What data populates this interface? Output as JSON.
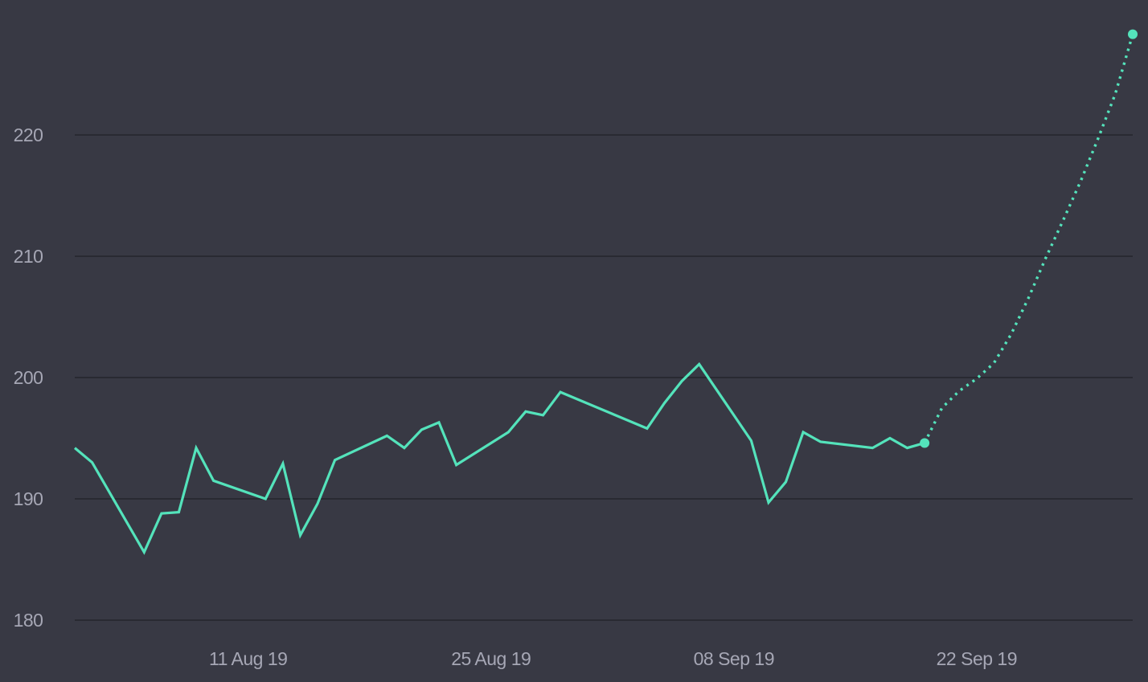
{
  "chart_data": {
    "type": "line",
    "title": "",
    "xlabel": "",
    "ylabel": "",
    "ylim": [
      180,
      228
    ],
    "xlim": [
      "2019-08-01",
      "2019-10-01"
    ],
    "y_ticks": [
      "180",
      "190",
      "200",
      "210",
      "220"
    ],
    "x_ticks": [
      {
        "date": "2019-08-11",
        "label": "11 Aug 19"
      },
      {
        "date": "2019-08-25",
        "label": "25 Aug 19"
      },
      {
        "date": "2019-09-08",
        "label": "08 Sep 19"
      },
      {
        "date": "2019-09-22",
        "label": "22 Sep 19"
      }
    ],
    "grid": "horizontal",
    "line_color": "#54e3bb",
    "series": [
      {
        "style": "solid",
        "points": [
          [
            "2019-08-01",
            194.2
          ],
          [
            "2019-08-02",
            193.0
          ],
          [
            "2019-08-05",
            185.6
          ],
          [
            "2019-08-06",
            188.8
          ],
          [
            "2019-08-07",
            188.9
          ],
          [
            "2019-08-08",
            194.2
          ],
          [
            "2019-08-09",
            191.5
          ],
          [
            "2019-08-12",
            190.0
          ],
          [
            "2019-08-13",
            192.9
          ],
          [
            "2019-08-14",
            187.0
          ],
          [
            "2019-08-15",
            189.6
          ],
          [
            "2019-08-16",
            193.2
          ],
          [
            "2019-08-19",
            195.2
          ],
          [
            "2019-08-20",
            194.2
          ],
          [
            "2019-08-21",
            195.7
          ],
          [
            "2019-08-22",
            196.3
          ],
          [
            "2019-08-23",
            192.8
          ],
          [
            "2019-08-26",
            195.5
          ],
          [
            "2019-08-27",
            197.2
          ],
          [
            "2019-08-28",
            196.9
          ],
          [
            "2019-08-29",
            198.8
          ],
          [
            "2019-09-03",
            195.8
          ],
          [
            "2019-09-04",
            197.9
          ],
          [
            "2019-09-05",
            199.7
          ],
          [
            "2019-09-06",
            201.1
          ],
          [
            "2019-09-09",
            194.8
          ],
          [
            "2019-09-10",
            189.7
          ],
          [
            "2019-09-11",
            191.4
          ],
          [
            "2019-09-12",
            195.5
          ],
          [
            "2019-09-13",
            194.7
          ],
          [
            "2019-09-16",
            194.2
          ],
          [
            "2019-09-17",
            195.0
          ],
          [
            "2019-09-18",
            194.2
          ],
          [
            "2019-09-19",
            194.6
          ]
        ]
      },
      {
        "style": "dotted",
        "points": [
          [
            "2019-09-19",
            194.6
          ],
          [
            "2019-09-20",
            197.5
          ],
          [
            "2019-09-21",
            198.9
          ],
          [
            "2019-09-22",
            199.9
          ],
          [
            "2019-09-23",
            201.2
          ],
          [
            "2019-09-24",
            203.6
          ],
          [
            "2019-09-25",
            206.6
          ],
          [
            "2019-09-26",
            209.9
          ],
          [
            "2019-09-27",
            213.0
          ],
          [
            "2019-09-28",
            216.2
          ],
          [
            "2019-09-29",
            219.7
          ],
          [
            "2019-09-30",
            223.4
          ],
          [
            "2019-10-01",
            228.3
          ]
        ]
      }
    ],
    "markers": [
      [
        "2019-09-19",
        194.6
      ],
      [
        "2019-10-01",
        228.3
      ]
    ]
  }
}
